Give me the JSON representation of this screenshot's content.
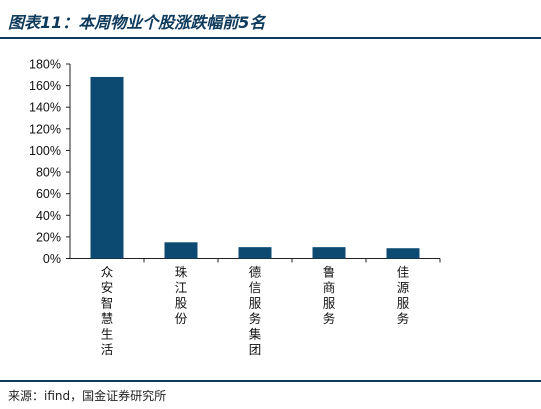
{
  "header": {
    "title": "图表11：本周物业个股涨跌幅前5名"
  },
  "footer": {
    "source": "来源：ifind，国金证券研究所"
  },
  "colors": {
    "bar": "#0c4a72",
    "rule": "#0e3a5c"
  },
  "chart_data": {
    "type": "bar",
    "categories": [
      "众安智慧生活",
      "珠江股份",
      "德信服务集团",
      "鲁商服务",
      "佳源服务"
    ],
    "values": [
      168,
      15,
      10.5,
      10.5,
      9.5
    ],
    "ylim": [
      0,
      180
    ],
    "yticks": [
      "0%",
      "20%",
      "40%",
      "60%",
      "80%",
      "100%",
      "120%",
      "140%",
      "160%",
      "180%"
    ],
    "ytick_values": [
      0,
      20,
      40,
      60,
      80,
      100,
      120,
      140,
      160,
      180
    ],
    "grid": false,
    "legend": "none"
  }
}
